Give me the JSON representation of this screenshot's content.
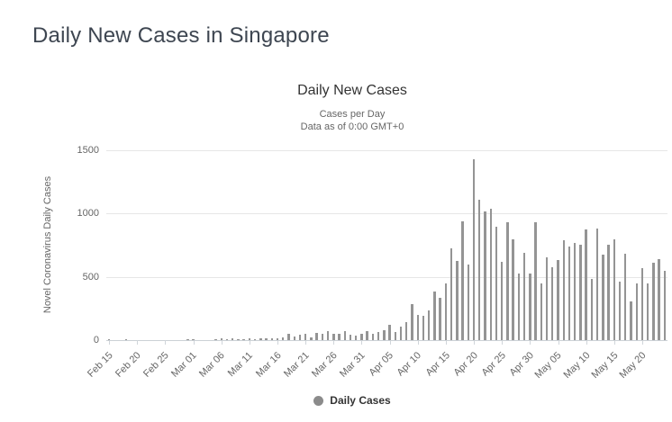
{
  "page": {
    "title": "Daily New Cases in Singapore"
  },
  "chart": {
    "title": "Daily New Cases",
    "subtitle_line1": "Cases per Day",
    "subtitle_line2": "Data as of 0:00 GMT+0",
    "y_axis_title": "Novel Coronavirus Daily Cases",
    "legend_label": "Daily Cases",
    "colors": {
      "bar": "#949494",
      "legend_marker": "#8b8b8b",
      "gridline": "#e6e6e6",
      "axis_line": "#ccd1d6",
      "chart_title_text": "#333333",
      "subtitle_text": "#666666",
      "tick_text": "#666666",
      "page_title_text": "#3e4651",
      "background": "#ffffff"
    }
  },
  "chart_data": {
    "type": "bar",
    "title": "Daily New Cases",
    "subtitle": "Cases per Day — Data as of 0:00 GMT+0",
    "xlabel": "",
    "ylabel": "Novel Coronavirus Daily Cases",
    "ylim": [
      0,
      1500
    ],
    "yticks": [
      0,
      500,
      1000,
      1500
    ],
    "grid": "horizontal",
    "legend_entries": [
      "Daily Cases"
    ],
    "legend_position": "bottom",
    "tick_step": 5,
    "tick_labels": [
      "Feb 15",
      "Feb 20",
      "Feb 25",
      "Mar 01",
      "Mar 06",
      "Mar 11",
      "Mar 16",
      "Mar 21",
      "Mar 26",
      "Mar 31",
      "Apr 05",
      "Apr 10",
      "Apr 15",
      "Apr 20",
      "Apr 25",
      "Apr 30",
      "May 05",
      "May 10",
      "May 15",
      "May 20"
    ],
    "x": [
      "Feb 15",
      "Feb 16",
      "Feb 17",
      "Feb 18",
      "Feb 19",
      "Feb 20",
      "Feb 21",
      "Feb 22",
      "Feb 23",
      "Feb 24",
      "Feb 25",
      "Feb 26",
      "Feb 27",
      "Feb 28",
      "Feb 29",
      "Mar 01",
      "Mar 02",
      "Mar 03",
      "Mar 04",
      "Mar 05",
      "Mar 06",
      "Mar 07",
      "Mar 08",
      "Mar 09",
      "Mar 10",
      "Mar 11",
      "Mar 12",
      "Mar 13",
      "Mar 14",
      "Mar 15",
      "Mar 16",
      "Mar 17",
      "Mar 18",
      "Mar 19",
      "Mar 20",
      "Mar 21",
      "Mar 22",
      "Mar 23",
      "Mar 24",
      "Mar 25",
      "Mar 26",
      "Mar 27",
      "Mar 28",
      "Mar 29",
      "Mar 30",
      "Mar 31",
      "Apr 01",
      "Apr 02",
      "Apr 03",
      "Apr 04",
      "Apr 05",
      "Apr 06",
      "Apr 07",
      "Apr 08",
      "Apr 09",
      "Apr 10",
      "Apr 11",
      "Apr 12",
      "Apr 13",
      "Apr 14",
      "Apr 15",
      "Apr 16",
      "Apr 17",
      "Apr 18",
      "Apr 19",
      "Apr 20",
      "Apr 21",
      "Apr 22",
      "Apr 23",
      "Apr 24",
      "Apr 25",
      "Apr 26",
      "Apr 27",
      "Apr 28",
      "Apr 29",
      "Apr 30",
      "May 01",
      "May 02",
      "May 03",
      "May 04",
      "May 05",
      "May 06",
      "May 07",
      "May 08",
      "May 09",
      "May 10",
      "May 11",
      "May 12",
      "May 13",
      "May 14",
      "May 15",
      "May 16",
      "May 17",
      "May 18",
      "May 19",
      "May 20",
      "May 21",
      "May 22",
      "May 23",
      "May 24"
    ],
    "values": [
      5,
      3,
      2,
      4,
      3,
      1,
      1,
      3,
      0,
      1,
      1,
      2,
      3,
      2,
      4,
      4,
      2,
      2,
      2,
      5,
      13,
      9,
      12,
      10,
      6,
      12,
      9,
      13,
      12,
      14,
      17,
      23,
      47,
      32,
      40,
      47,
      23,
      54,
      49,
      73,
      52,
      49,
      70,
      42,
      35,
      47,
      74,
      49,
      65,
      75,
      120,
      66,
      106,
      142,
      287,
      198,
      191,
      233,
      386,
      334,
      447,
      728,
      623,
      942,
      596,
      1426,
      1111,
      1016,
      1037,
      897,
      618,
      931,
      799,
      528,
      690,
      528,
      932,
      447,
      657,
      573,
      632,
      788,
      741,
      768,
      753,
      876,
      486,
      884,
      675,
      752,
      793,
      465,
      682,
      305,
      451,
      570,
      448,
      614,
      642,
      548
    ],
    "series_name": "Daily Cases"
  }
}
